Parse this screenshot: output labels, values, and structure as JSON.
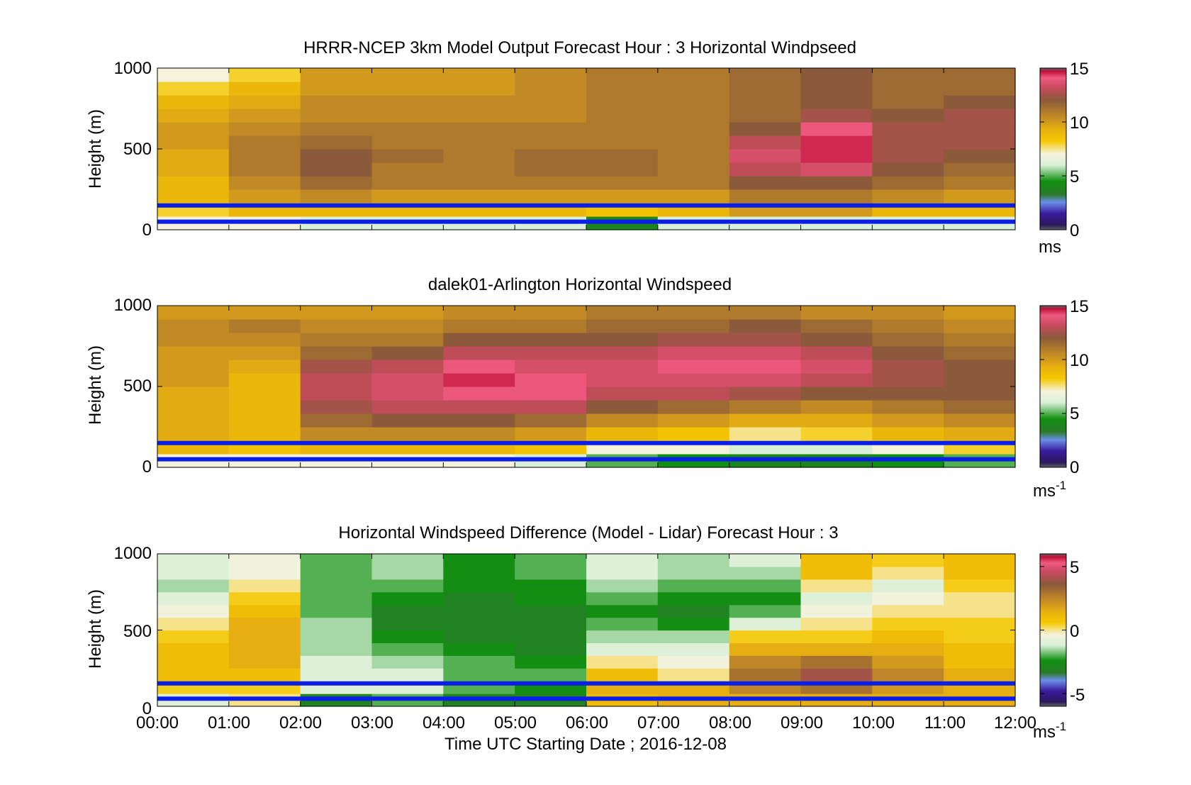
{
  "chart_data": [
    {
      "type": "heatmap",
      "panel": "model",
      "title": "HRRR-NCEP 3km Model Output   Forecast Hour : 3 Horizontal Windpseed",
      "ylabel": "Height (m)",
      "xlabel": "",
      "ylim": [
        0,
        1000
      ],
      "yticks": [
        "0",
        "500",
        "1000"
      ],
      "x_range_hours": [
        0,
        12
      ],
      "colorbar": {
        "range": [
          0,
          15
        ],
        "ticks": [
          "0",
          "5",
          "10",
          "15"
        ],
        "unit": "ms",
        "unit_sup": ""
      },
      "reference_heights_m": [
        50,
        150
      ],
      "columns": [
        {
          "hour": 0,
          "values": [
            7,
            8,
            9,
            9,
            9.5,
            9.5,
            10,
            10,
            9.5,
            9,
            8,
            7
          ]
        },
        {
          "hour": 1,
          "values": [
            7,
            9,
            10,
            10.5,
            11,
            11,
            11,
            10.5,
            10,
            9.5,
            9,
            8
          ]
        },
        {
          "hour": 2,
          "values": [
            6,
            9,
            10.5,
            11.5,
            12,
            12,
            11.5,
            11,
            10.5,
            10.5,
            10,
            10
          ]
        },
        {
          "hour": 3,
          "values": [
            6,
            9,
            10,
            11,
            11,
            11.5,
            11,
            11,
            10.5,
            10.5,
            10,
            10
          ]
        },
        {
          "hour": 4,
          "values": [
            6,
            9,
            10,
            11,
            11,
            11,
            11,
            11,
            10.5,
            10.5,
            10,
            10
          ]
        },
        {
          "hour": 5,
          "values": [
            6,
            9,
            10,
            11,
            11.5,
            11.5,
            11,
            11,
            10.5,
            10.5,
            10.5,
            10.5
          ]
        },
        {
          "hour": 6,
          "values": [
            4,
            8.5,
            10,
            11,
            11.5,
            11.5,
            11,
            11,
            11,
            11,
            11,
            11
          ]
        },
        {
          "hour": 7,
          "values": [
            6,
            9,
            10,
            11,
            11,
            11,
            11,
            11,
            11,
            11,
            11,
            11
          ]
        },
        {
          "hour": 8,
          "values": [
            6,
            10,
            11,
            12,
            13,
            13.5,
            13,
            12,
            11.5,
            11.5,
            11.5,
            11.5
          ]
        },
        {
          "hour": 9,
          "values": [
            6,
            10,
            11,
            12,
            13.5,
            14.5,
            14.5,
            14,
            12.5,
            12,
            12,
            12
          ]
        },
        {
          "hour": 10,
          "values": [
            6,
            9,
            10.5,
            11.5,
            12,
            12.5,
            12.5,
            12.5,
            12,
            11.5,
            11.5,
            11.5
          ]
        },
        {
          "hour": 11,
          "values": [
            6,
            9,
            10,
            11,
            11.5,
            12,
            12.5,
            12.5,
            12.5,
            12,
            11.5,
            11.5
          ]
        }
      ]
    },
    {
      "type": "heatmap",
      "panel": "lidar",
      "title": "dalek01-Arlington  Horizontal Windspeed",
      "ylabel": "Height (m)",
      "xlabel": "",
      "ylim": [
        0,
        1000
      ],
      "yticks": [
        "0",
        "500",
        "1000"
      ],
      "x_range_hours": [
        0,
        12
      ],
      "colorbar": {
        "range": [
          0,
          15
        ],
        "ticks": [
          "0",
          "5",
          "10",
          "15"
        ],
        "unit": "ms",
        "unit_sup": "-1"
      },
      "reference_heights_m": [
        50,
        150
      ],
      "columns": [
        {
          "hour": 0,
          "values": [
            7,
            9,
            9.5,
            9.5,
            9.5,
            9.5,
            10,
            10,
            10,
            10.5,
            10.5,
            10
          ]
        },
        {
          "hour": 1,
          "values": [
            7,
            8.5,
            9,
            9,
            9,
            9,
            9,
            9.5,
            10,
            10.5,
            11,
            10
          ]
        },
        {
          "hour": 2,
          "values": [
            7,
            9,
            10.5,
            11.5,
            12.5,
            13,
            13,
            12.5,
            11.5,
            11,
            10.5,
            10
          ]
        },
        {
          "hour": 3,
          "values": [
            7,
            9,
            10.5,
            12,
            13,
            13.5,
            13.5,
            13,
            12,
            11,
            10.5,
            10
          ]
        },
        {
          "hour": 4,
          "values": [
            7,
            9,
            10.5,
            12,
            13,
            14,
            14.5,
            14,
            13,
            12,
            11,
            10.5
          ]
        },
        {
          "hour": 5,
          "values": [
            6,
            8.5,
            10,
            11.5,
            13,
            14,
            14,
            13.5,
            13,
            12,
            11,
            10.5
          ]
        },
        {
          "hour": 6,
          "values": [
            5,
            7,
            9,
            10.5,
            12,
            13,
            13.5,
            13.5,
            13,
            12,
            11.5,
            11
          ]
        },
        {
          "hour": 7,
          "values": [
            4.5,
            7,
            8.5,
            10,
            11.5,
            13,
            13.5,
            14,
            13.5,
            12.5,
            11.5,
            11
          ]
        },
        {
          "hour": 8,
          "values": [
            4,
            6,
            7.5,
            9.5,
            11,
            12.5,
            13.5,
            14,
            13.5,
            12.5,
            12,
            11
          ]
        },
        {
          "hour": 9,
          "values": [
            4,
            6,
            8,
            9.5,
            10.5,
            12,
            13,
            13.5,
            13,
            12,
            11.5,
            10.5
          ]
        },
        {
          "hour": 10,
          "values": [
            4.5,
            7,
            9,
            10,
            11,
            12,
            12.5,
            12.5,
            12,
            11.5,
            11,
            10.5
          ]
        },
        {
          "hour": 11,
          "values": [
            5,
            8,
            9.5,
            10.5,
            11.5,
            12,
            12,
            12,
            11.5,
            11,
            10.5,
            10
          ]
        }
      ]
    },
    {
      "type": "heatmap",
      "panel": "difference",
      "title": "Horizontal Windspeed Difference (Model - Lidar) Forecast Hour : 3",
      "ylabel": "Height (m)",
      "xlabel": "Time UTC  Starting Date ; 2016-12-08",
      "ylim": [
        0,
        1000
      ],
      "yticks": [
        "0",
        "500",
        "1000"
      ],
      "x_range_hours": [
        0,
        12
      ],
      "xticks": [
        "00:00",
        "01:00",
        "02:00",
        "03:00",
        "04:00",
        "05:00",
        "06:00",
        "07:00",
        "08:00",
        "09:00",
        "10:00",
        "11:00",
        "12:00"
      ],
      "colorbar": {
        "range": [
          -6,
          6
        ],
        "ticks": [
          "-5",
          "0",
          "5"
        ],
        "unit": "ms",
        "unit_sup": "-1"
      },
      "reference_heights_m": [
        50,
        150
      ],
      "columns": [
        {
          "hour": 0,
          "values": [
            -1,
            0.5,
            1,
            1,
            1,
            0.5,
            0,
            -0.5,
            -1,
            -1.5,
            -1,
            -1
          ]
        },
        {
          "hour": 1,
          "values": [
            0,
            0.5,
            1,
            1.5,
            1.5,
            1.5,
            1.5,
            1,
            0.5,
            0,
            -0.5,
            -0.5
          ]
        },
        {
          "hour": 2,
          "values": [
            -3,
            -1,
            -1,
            -1,
            -1.5,
            -1.5,
            -1.5,
            -2,
            -2,
            -2,
            -2,
            -2
          ]
        },
        {
          "hour": 3,
          "values": [
            -2,
            -1,
            -1,
            -1.5,
            -2,
            -2.5,
            -3,
            -3,
            -2.5,
            -2,
            -1.5,
            -1.5
          ]
        },
        {
          "hour": 4,
          "values": [
            -3,
            -2,
            -2,
            -2,
            -2.5,
            -3,
            -3,
            -3,
            -3,
            -2.5,
            -2.5,
            -2.5
          ]
        },
        {
          "hour": 5,
          "values": [
            -3,
            -2.5,
            -2,
            -2.5,
            -3,
            -3,
            -3,
            -3,
            -2.5,
            -2.5,
            -2,
            -2
          ]
        },
        {
          "hour": 6,
          "values": [
            1,
            1.5,
            1,
            0,
            -1,
            -1.5,
            -2,
            -2.5,
            -2,
            -1.5,
            -1,
            -1
          ]
        },
        {
          "hour": 7,
          "values": [
            1.5,
            1.5,
            0,
            -0.5,
            -1,
            -1.5,
            -2.5,
            -3,
            -2.5,
            -2,
            -1.5,
            -1.5
          ]
        },
        {
          "hour": 8,
          "values": [
            1.5,
            2.5,
            3,
            2.5,
            1.5,
            0.5,
            -1,
            -2,
            -2.5,
            -2,
            -1.5,
            -1
          ]
        },
        {
          "hour": 9,
          "values": [
            1.5,
            3,
            4,
            3,
            1.5,
            0.5,
            0,
            -0.5,
            -1,
            0,
            1,
            1
          ]
        },
        {
          "hour": 10,
          "values": [
            1.5,
            2,
            2.5,
            2,
            1.5,
            1,
            0.5,
            0,
            -0.5,
            -1,
            0,
            0.5
          ]
        },
        {
          "hour": 11,
          "values": [
            1.5,
            1.5,
            1.5,
            1,
            1,
            0.5,
            0.5,
            0,
            0,
            0.5,
            1,
            1
          ]
        }
      ]
    }
  ]
}
